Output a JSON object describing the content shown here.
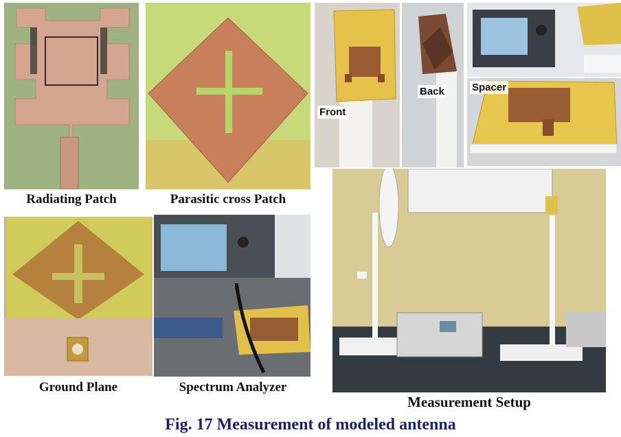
{
  "figure_caption": "Fig. 17 Measurement of modeled antenna",
  "panels": {
    "radiating_patch": {
      "caption": "Radiating Patch"
    },
    "parasitic_patch": {
      "caption": "Parasitic cross Patch"
    },
    "ground_plane": {
      "caption": "Ground Plane"
    },
    "spectrum_analyzer": {
      "caption": "Spectrum Analyzer"
    },
    "measurement_setup": {
      "caption": "Measurement Setup"
    },
    "antenna_views": {
      "front_label": "Front",
      "back_label": "Back",
      "spacer_label": "Spacer"
    }
  }
}
